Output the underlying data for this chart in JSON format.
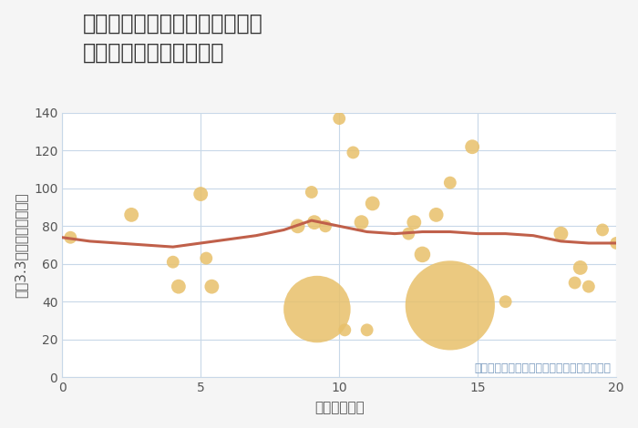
{
  "title": "愛知県海部郡蟹江町今東郊通の\n駅距離別中古戸建て価格",
  "xlabel": "駅距離（分）",
  "ylabel": "坪（3.3㎡）単価（万円）",
  "note": "円の大きさは、取引のあった物件面積を示す",
  "scatter_x": [
    0.3,
    2.5,
    4.0,
    4.2,
    5.0,
    5.2,
    5.4,
    8.5,
    9.0,
    9.1,
    9.2,
    9.5,
    10.0,
    10.2,
    10.5,
    10.8,
    11.0,
    11.2,
    12.5,
    12.7,
    13.0,
    13.5,
    14.0,
    14.8,
    16.0,
    18.0,
    18.5,
    18.7,
    19.0,
    19.5,
    20.0
  ],
  "scatter_y": [
    74,
    86,
    61,
    48,
    97,
    63,
    48,
    80,
    98,
    82,
    36,
    80,
    137,
    25,
    119,
    82,
    25,
    92,
    76,
    82,
    65,
    86,
    103,
    122,
    40,
    76,
    50,
    58,
    48,
    78,
    71
  ],
  "scatter_size": [
    100,
    130,
    100,
    130,
    130,
    100,
    130,
    130,
    100,
    130,
    2800,
    100,
    100,
    100,
    100,
    130,
    100,
    130,
    100,
    130,
    160,
    130,
    100,
    130,
    100,
    130,
    100,
    130,
    100,
    100,
    100
  ],
  "large_bubble_x": 14.0,
  "large_bubble_y": 38,
  "large_bubble_size": 5000,
  "line_x": [
    0,
    1,
    2,
    3,
    4,
    5,
    6,
    7,
    8,
    9,
    10,
    11,
    12,
    13,
    14,
    15,
    16,
    17,
    18,
    19,
    20
  ],
  "line_y": [
    74,
    72,
    71,
    70,
    69,
    71,
    73,
    75,
    78,
    83,
    80,
    77,
    76,
    77,
    77,
    76,
    76,
    75,
    72,
    71,
    71
  ],
  "scatter_color": "#E8C06A",
  "scatter_alpha": 0.85,
  "line_color": "#C0604A",
  "line_width": 2.2,
  "bg_color": "#F5F5F5",
  "plot_bg_color": "#FFFFFF",
  "grid_color": "#C8D8E8",
  "title_color": "#333333",
  "axis_label_color": "#555555",
  "note_color": "#7A9BBF",
  "xlim": [
    0,
    20
  ],
  "ylim": [
    0,
    140
  ],
  "yticks": [
    0,
    20,
    40,
    60,
    80,
    100,
    120,
    140
  ],
  "xticks": [
    0,
    5,
    10,
    15,
    20
  ],
  "title_fontsize": 17,
  "label_fontsize": 11,
  "tick_fontsize": 10,
  "note_fontsize": 9
}
